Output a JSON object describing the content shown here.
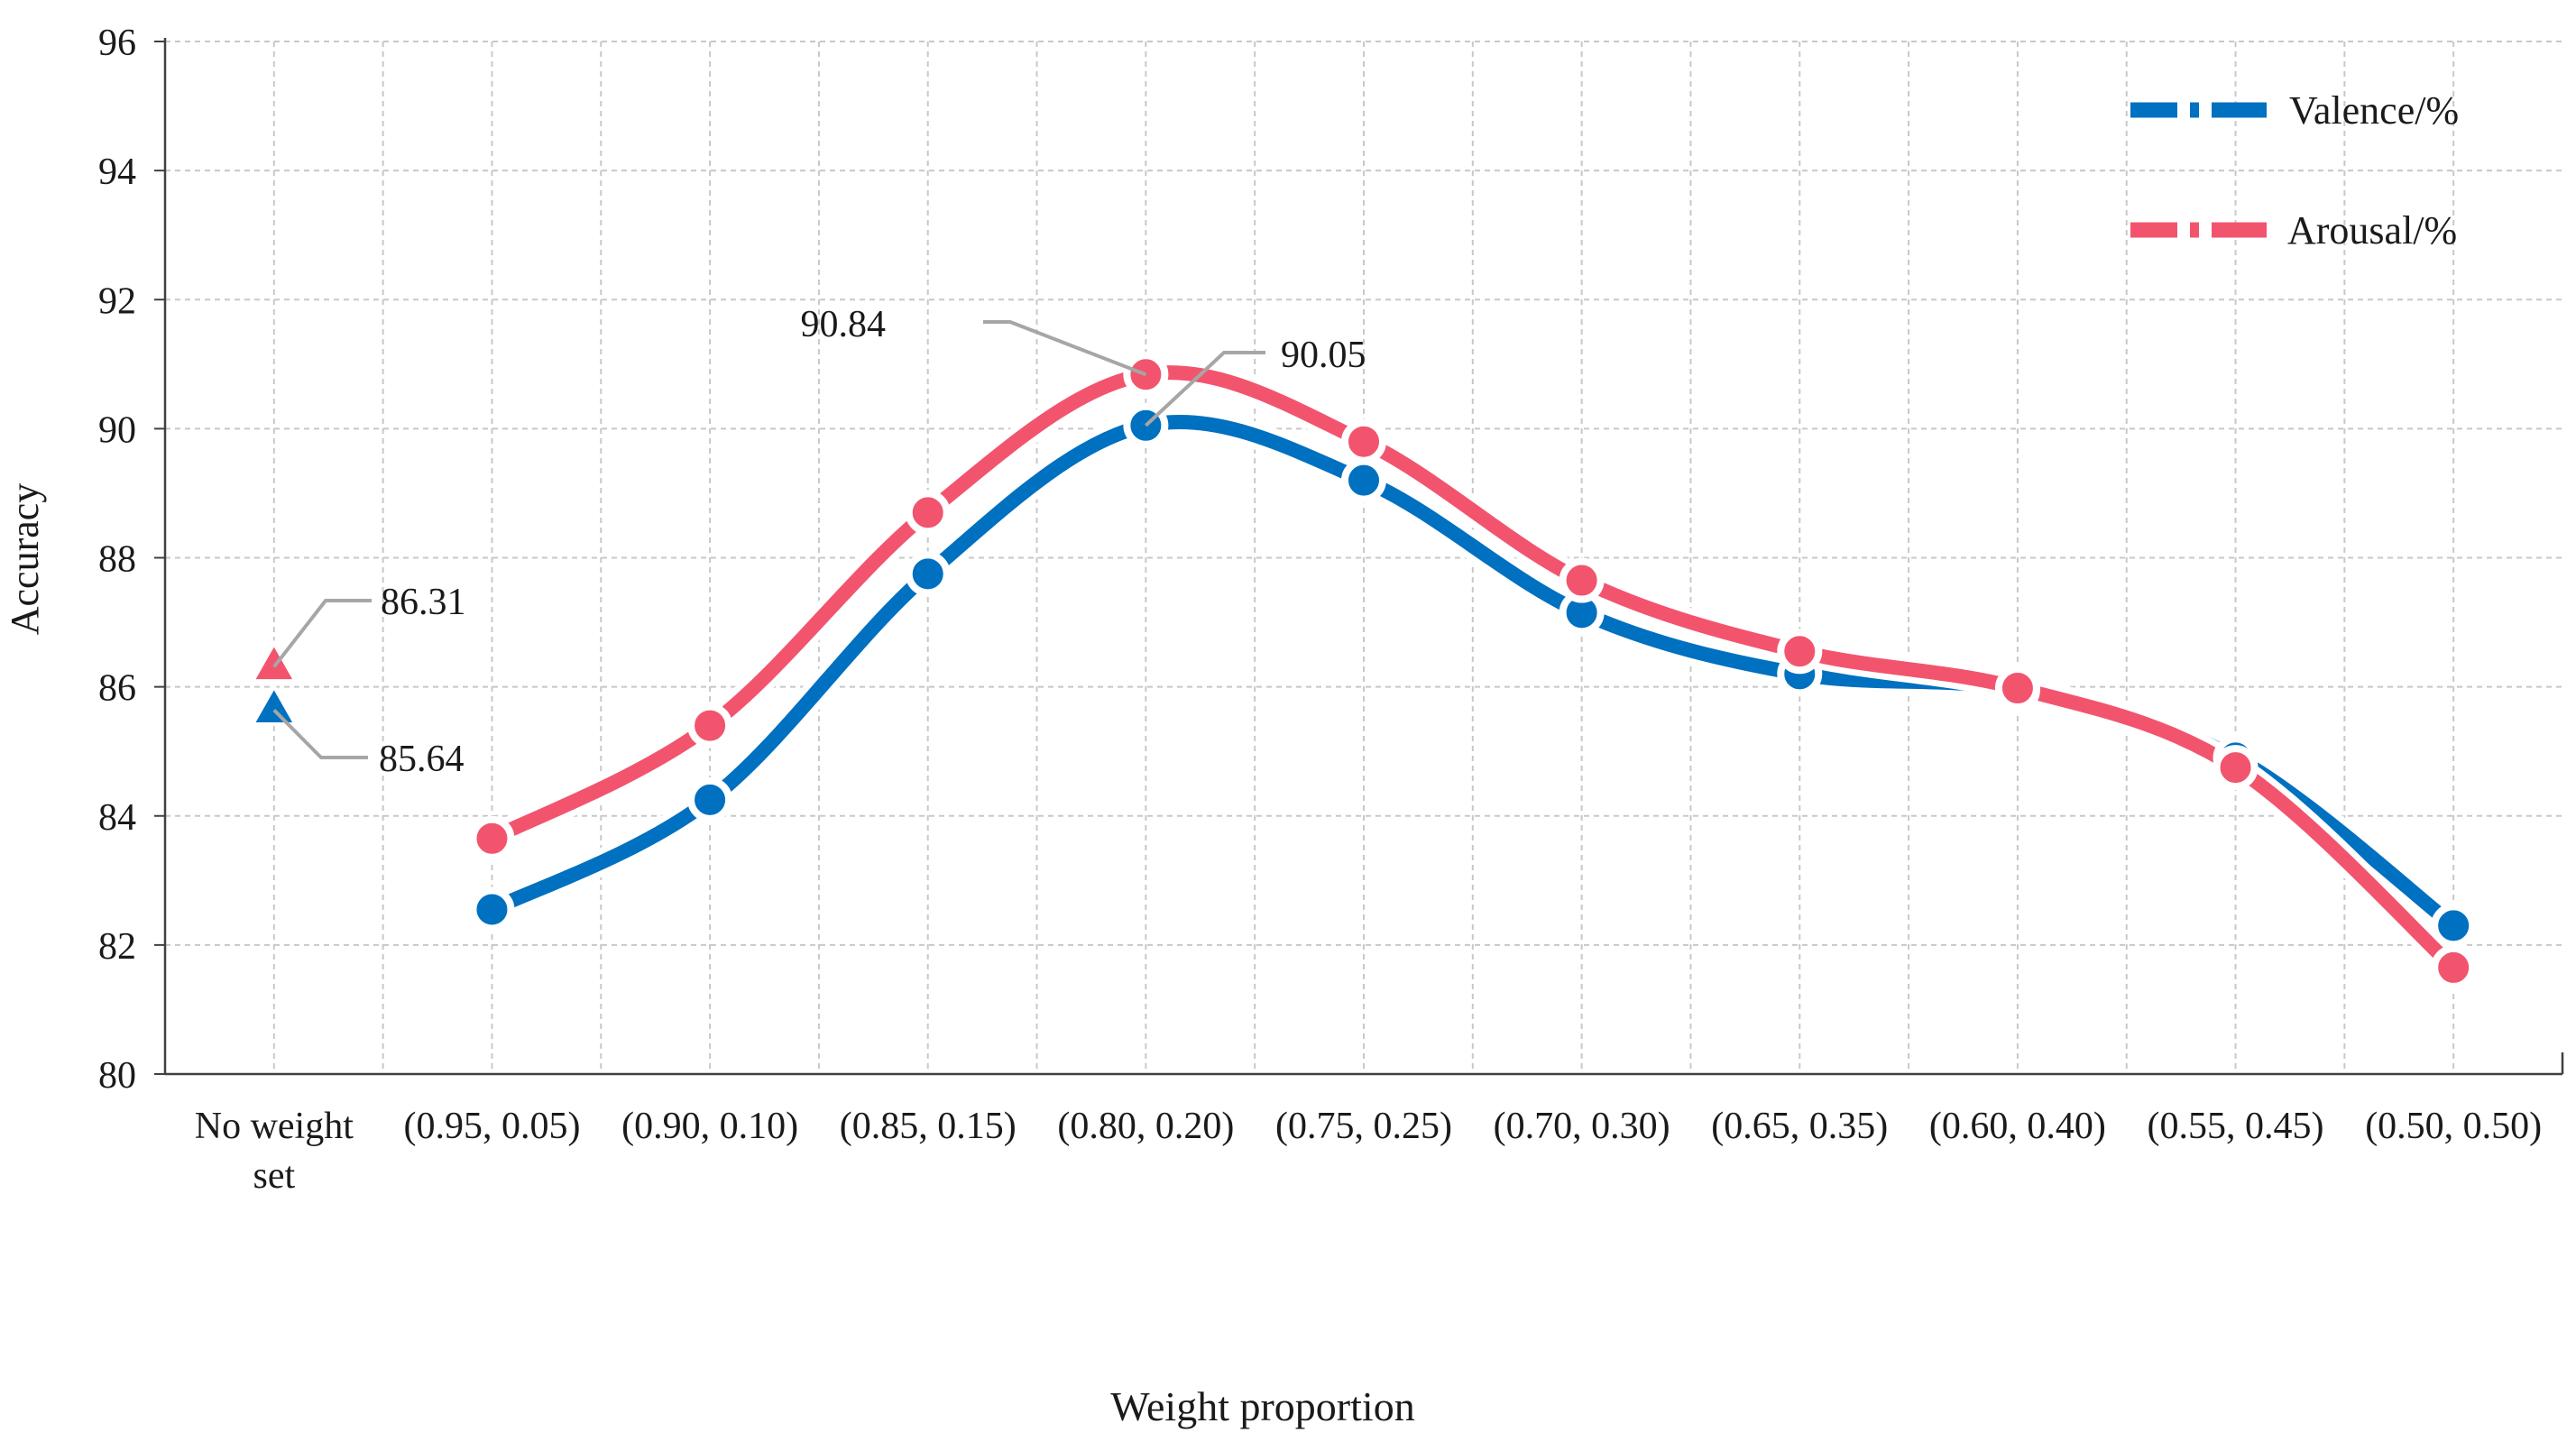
{
  "chart_data": {
    "type": "line",
    "title": "",
    "xlabel": "Weight proportion",
    "ylabel": "Accuracy",
    "categories": [
      [
        "No weight",
        "set"
      ],
      [
        "(0.95, 0.05)"
      ],
      [
        "(0.90, 0.10)"
      ],
      [
        "(0.85, 0.15)"
      ],
      [
        "(0.80, 0.20)"
      ],
      [
        "(0.75, 0.25)"
      ],
      [
        "(0.70, 0.30)"
      ],
      [
        "(0.65, 0.35)"
      ],
      [
        "(0.60, 0.40)"
      ],
      [
        "(0.55, 0.45)"
      ],
      [
        "(0.50, 0.50)"
      ]
    ],
    "ylim": [
      80,
      96
    ],
    "yticks": [
      80,
      82,
      84,
      86,
      88,
      90,
      92,
      94,
      96
    ],
    "grid": true,
    "legend_position": "top-right",
    "series": [
      {
        "name": "Valence/%",
        "color": "#0070C0",
        "values": [
          85.64,
          82.55,
          84.25,
          87.75,
          90.05,
          89.2,
          87.15,
          86.2,
          85.95,
          84.9,
          82.3
        ]
      },
      {
        "name": "Arousal/%",
        "color": "#F2546E",
        "values": [
          86.31,
          83.65,
          85.4,
          88.7,
          90.84,
          89.8,
          87.65,
          86.55,
          85.98,
          84.75,
          81.65
        ]
      }
    ],
    "annotations": [
      {
        "text": "86.31",
        "series": 1,
        "index": 0
      },
      {
        "text": "85.64",
        "series": 0,
        "index": 0
      },
      {
        "text": "90.84",
        "series": 1,
        "index": 4
      },
      {
        "text": "90.05",
        "series": 0,
        "index": 4
      }
    ],
    "callout_color": "#A6A6A6",
    "grid_color": "#C8C8C8",
    "axis_color": "#404040"
  }
}
